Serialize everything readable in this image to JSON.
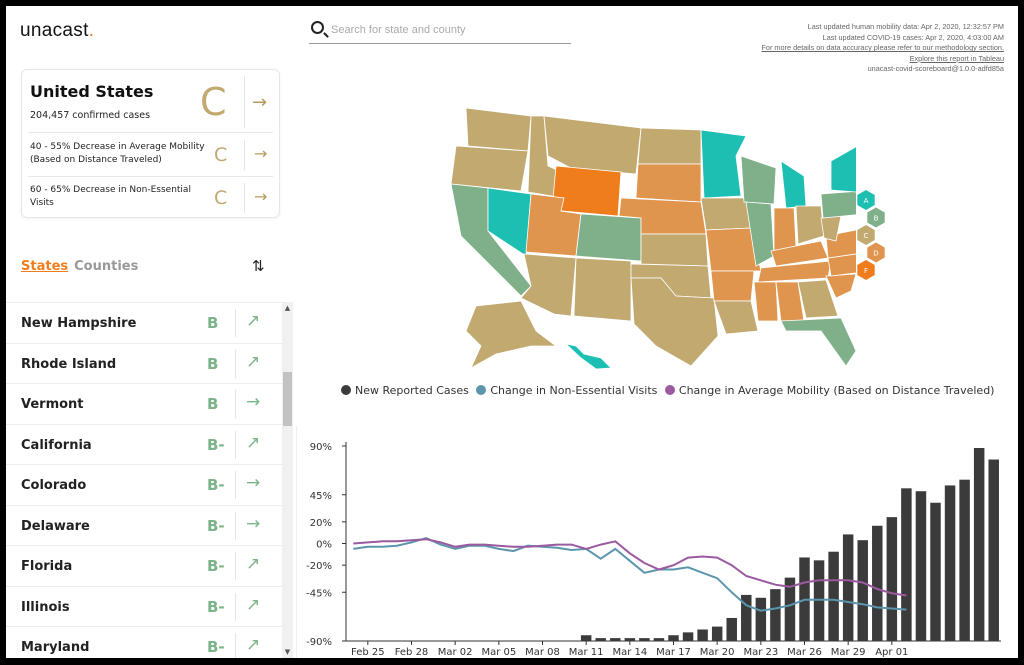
{
  "app": {
    "logo_text": "unacast",
    "logo_dot": "."
  },
  "summary": {
    "title": "United States",
    "cases": "204,457 confirmed cases",
    "grade": "C",
    "rows": [
      {
        "label": "40 - 55% Decrease in Average Mobility (Based on Distance Traveled)",
        "grade": "C"
      },
      {
        "label": "60 - 65% Decrease in Non-Essential Visits",
        "grade": "C"
      }
    ]
  },
  "tabs": {
    "states": "States",
    "counties": "Counties"
  },
  "search": {
    "placeholder": "Search for state and county",
    "value": ""
  },
  "meta": {
    "mobility_updated": "Last updated human mobility data: Apr 2, 2020, 12:32:57 PM",
    "covid_updated": "Last updated COVID-19 cases: Apr 2, 2020, 4:03:00 AM",
    "methodology_link": "For more details on data accuracy please refer to our methodology section.",
    "tableau_link": "Explore this report in Tableau",
    "version": "unacast-covid-scoreboard@1.0.0-adfd85a"
  },
  "states": [
    {
      "name": "New Hampshire",
      "grade": "B",
      "trend": "↗"
    },
    {
      "name": "Rhode Island",
      "grade": "B",
      "trend": "↗"
    },
    {
      "name": "Vermont",
      "grade": "B",
      "trend": "→"
    },
    {
      "name": "California",
      "grade": "B-",
      "trend": "↗"
    },
    {
      "name": "Colorado",
      "grade": "B-",
      "trend": "→"
    },
    {
      "name": "Delaware",
      "grade": "B-",
      "trend": "→"
    },
    {
      "name": "Florida",
      "grade": "B-",
      "trend": "↗"
    },
    {
      "name": "Illinois",
      "grade": "B-",
      "trend": "↗"
    },
    {
      "name": "Maryland",
      "grade": "B-",
      "trend": "↗"
    }
  ],
  "grade_legend": [
    {
      "grade": "A",
      "color": "#1ebfb3"
    },
    {
      "grade": "B",
      "color": "#7fb08a"
    },
    {
      "grade": "C",
      "color": "#c2a970"
    },
    {
      "grade": "D",
      "color": "#e0954e"
    },
    {
      "grade": "F",
      "color": "#f07d1b"
    }
  ],
  "colors": {
    "accent": "#f07d1b",
    "grade_b": "#7cb48a",
    "grade_c": "#c2a970"
  },
  "chart_data": {
    "type": "bar",
    "title": "",
    "series": [
      {
        "name": "New Reported Cases",
        "type": "bar",
        "color": "#3b3b3b",
        "values": [
          null,
          null,
          null,
          null,
          null,
          null,
          null,
          null,
          null,
          null,
          null,
          null,
          null,
          null,
          null,
          null,
          2,
          1,
          1,
          1,
          1,
          1,
          2,
          3,
          4,
          5,
          8,
          16,
          15,
          18,
          22,
          29,
          28,
          31,
          37,
          35,
          40,
          43,
          53,
          52,
          48,
          54,
          56,
          67,
          63
        ]
      },
      {
        "name": "Change in Non-Essential Visits",
        "type": "line",
        "color": "#5b96ad",
        "values": [
          -5,
          -3,
          -3,
          -2,
          1,
          5,
          -1,
          -5,
          -2,
          -2,
          -5,
          -7,
          -2,
          -3,
          -4,
          -6,
          -5,
          -14,
          -5,
          -16,
          -27,
          -24,
          -24,
          -22,
          -27,
          -32,
          -45,
          -57,
          -62,
          -60,
          -57,
          -52,
          -52,
          -52,
          -54,
          -56,
          -59,
          -60,
          -61
        ]
      },
      {
        "name": "Change in Average Mobility (Based on Distance Traveled)",
        "type": "line",
        "color": "#9b59a0",
        "values": [
          0,
          1,
          2,
          2,
          3,
          4,
          1,
          -3,
          -1,
          -1,
          -2,
          -3,
          -3,
          -2,
          -1,
          -1,
          -5,
          -1,
          2,
          -9,
          -18,
          -24,
          -20,
          -13,
          -12,
          -13,
          -20,
          -30,
          -34,
          -38,
          -40,
          -36,
          -34,
          -34,
          -34,
          -36,
          -42,
          -46,
          -48
        ]
      }
    ],
    "x_ticks": [
      "Feb 25",
      "Feb 28",
      "Mar 02",
      "Mar 05",
      "Mar 08",
      "Mar 11",
      "Mar 14",
      "Mar 17",
      "Mar 20",
      "Mar 23",
      "Mar 26",
      "Mar 29",
      "Apr 01"
    ],
    "y_ticks": [
      "90%",
      "45%",
      "20%",
      "0%",
      "-20%",
      "-45%",
      "-90%"
    ],
    "ylim": [
      -90,
      90
    ],
    "legend": "top",
    "grid": false
  }
}
